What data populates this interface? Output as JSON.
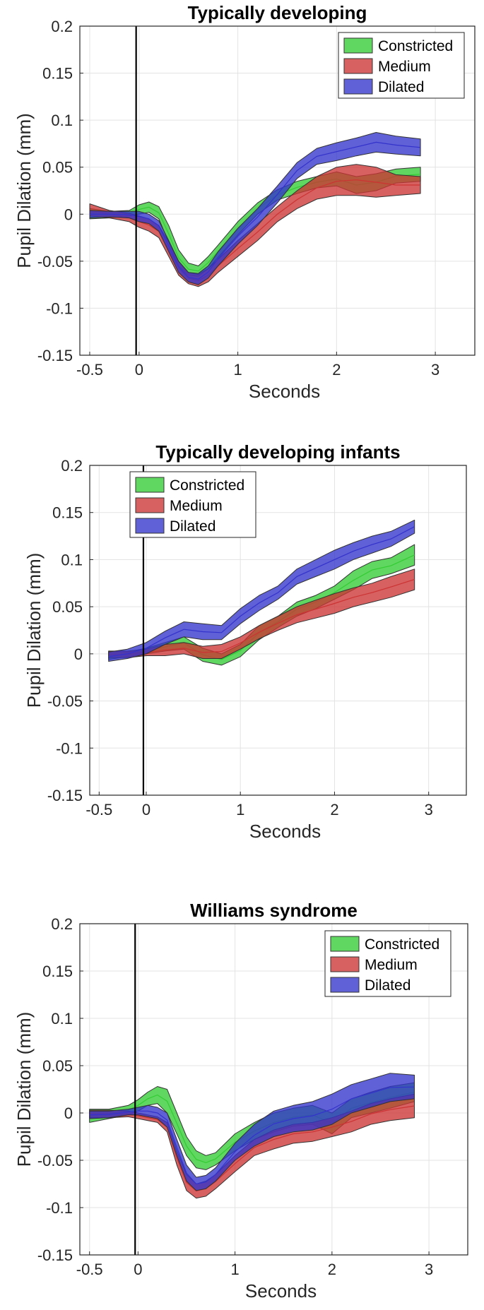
{
  "chart_data": [
    {
      "type": "area",
      "title": "Typically developing",
      "xlabel": "Seconds",
      "ylabel": "Pupil Dilation (mm)",
      "xlim": [
        -0.6,
        3.4
      ],
      "ylim": [
        -0.15,
        0.2
      ],
      "xticks": [
        -0.5,
        0,
        1,
        2,
        3
      ],
      "xtick_labels": [
        "-0.5",
        "0",
        "1",
        "2",
        "3"
      ],
      "yticks": [
        0.2,
        0.15,
        0.1,
        0.05,
        0,
        -0.05,
        -0.1,
        -0.15
      ],
      "ytick_labels": [
        "0.2",
        "0.15",
        "0.1",
        "0.05",
        "0",
        "-0.05",
        "-0.1",
        "-0.15"
      ],
      "grid": true,
      "vline_x": -0.03,
      "legend_position": "top-right",
      "series": [
        {
          "name": "Constricted",
          "color": "#33cc33",
          "x": [
            -0.5,
            -0.3,
            -0.1,
            0.0,
            0.1,
            0.2,
            0.3,
            0.4,
            0.5,
            0.6,
            0.7,
            0.8,
            1.0,
            1.2,
            1.4,
            1.6,
            1.8,
            2.0,
            2.2,
            2.4,
            2.6,
            2.85
          ],
          "lower": [
            -0.005,
            -0.004,
            -0.002,
            0.0,
            0.002,
            -0.005,
            -0.03,
            -0.055,
            -0.065,
            -0.066,
            -0.058,
            -0.046,
            -0.022,
            0.0,
            0.015,
            0.022,
            0.028,
            0.03,
            0.022,
            0.025,
            0.033,
            0.035
          ],
          "upper": [
            0.006,
            0.003,
            0.004,
            0.01,
            0.013,
            0.008,
            -0.012,
            -0.038,
            -0.052,
            -0.055,
            -0.045,
            -0.033,
            -0.008,
            0.012,
            0.026,
            0.035,
            0.04,
            0.045,
            0.04,
            0.043,
            0.048,
            0.05
          ]
        },
        {
          "name": "Medium",
          "color": "#cc3333",
          "x": [
            -0.5,
            -0.3,
            -0.1,
            0.0,
            0.1,
            0.2,
            0.3,
            0.4,
            0.5,
            0.6,
            0.7,
            0.8,
            1.0,
            1.2,
            1.4,
            1.6,
            1.8,
            2.0,
            2.2,
            2.4,
            2.6,
            2.85
          ],
          "lower": [
            -0.002,
            -0.004,
            -0.008,
            -0.014,
            -0.018,
            -0.025,
            -0.045,
            -0.065,
            -0.074,
            -0.077,
            -0.072,
            -0.062,
            -0.045,
            -0.028,
            -0.008,
            0.006,
            0.016,
            0.02,
            0.02,
            0.018,
            0.02,
            0.022
          ],
          "upper": [
            0.011,
            0.004,
            0.001,
            -0.002,
            -0.005,
            -0.012,
            -0.03,
            -0.05,
            -0.062,
            -0.064,
            -0.058,
            -0.048,
            -0.028,
            -0.01,
            0.008,
            0.025,
            0.04,
            0.05,
            0.053,
            0.05,
            0.042,
            0.04
          ]
        },
        {
          "name": "Dilated",
          "color": "#3333cc",
          "x": [
            -0.5,
            -0.3,
            -0.1,
            0.0,
            0.1,
            0.2,
            0.3,
            0.4,
            0.5,
            0.6,
            0.7,
            0.8,
            1.0,
            1.2,
            1.4,
            1.6,
            1.8,
            2.0,
            2.2,
            2.4,
            2.6,
            2.85
          ],
          "lower": [
            -0.004,
            -0.003,
            -0.004,
            -0.008,
            -0.01,
            -0.018,
            -0.04,
            -0.062,
            -0.072,
            -0.075,
            -0.068,
            -0.055,
            -0.032,
            -0.012,
            0.012,
            0.038,
            0.053,
            0.057,
            0.062,
            0.066,
            0.064,
            0.062
          ],
          "upper": [
            0.004,
            0.003,
            0.003,
            0.003,
            0.0,
            -0.007,
            -0.028,
            -0.05,
            -0.062,
            -0.063,
            -0.055,
            -0.04,
            -0.015,
            0.006,
            0.03,
            0.055,
            0.07,
            0.076,
            0.081,
            0.087,
            0.083,
            0.08
          ]
        }
      ]
    },
    {
      "type": "area",
      "title": "Typically developing infants",
      "xlabel": "Seconds",
      "ylabel": "Pupil Dilation (mm)",
      "xlim": [
        -0.6,
        3.4
      ],
      "ylim": [
        -0.15,
        0.2
      ],
      "xticks": [
        -0.5,
        0,
        1,
        2,
        3
      ],
      "xtick_labels": [
        "-0.5",
        "0",
        "1",
        "2",
        "3"
      ],
      "yticks": [
        0.2,
        0.15,
        0.1,
        0.05,
        0,
        -0.05,
        -0.1,
        -0.15
      ],
      "ytick_labels": [
        "0.2",
        "0.15",
        "0.1",
        "0.05",
        "0",
        "-0.05",
        "-0.1",
        "-0.15"
      ],
      "grid": true,
      "vline_x": -0.03,
      "legend_position": "top-left",
      "series": [
        {
          "name": "Constricted",
          "color": "#33cc33",
          "x": [
            -0.4,
            -0.2,
            0.0,
            0.2,
            0.4,
            0.6,
            0.8,
            1.0,
            1.2,
            1.4,
            1.6,
            1.8,
            2.0,
            2.2,
            2.4,
            2.6,
            2.85
          ],
          "lower": [
            -0.006,
            -0.003,
            0.0,
            0.003,
            0.005,
            -0.008,
            -0.012,
            -0.003,
            0.015,
            0.028,
            0.04,
            0.048,
            0.058,
            0.068,
            0.08,
            0.085,
            0.094
          ],
          "upper": [
            0.003,
            0.002,
            0.006,
            0.012,
            0.018,
            0.006,
            0.0,
            0.01,
            0.03,
            0.04,
            0.055,
            0.062,
            0.072,
            0.088,
            0.098,
            0.102,
            0.116
          ]
        },
        {
          "name": "Medium",
          "color": "#cc3333",
          "x": [
            -0.4,
            -0.2,
            0.0,
            0.2,
            0.4,
            0.6,
            0.8,
            1.0,
            1.2,
            1.4,
            1.6,
            1.8,
            2.0,
            2.2,
            2.4,
            2.6,
            2.85
          ],
          "lower": [
            -0.004,
            -0.004,
            -0.002,
            -0.002,
            0.0,
            -0.005,
            -0.005,
            0.005,
            0.016,
            0.025,
            0.033,
            0.038,
            0.043,
            0.05,
            0.055,
            0.06,
            0.068
          ],
          "upper": [
            0.003,
            0.003,
            0.005,
            0.01,
            0.012,
            0.008,
            0.01,
            0.018,
            0.03,
            0.04,
            0.05,
            0.057,
            0.064,
            0.07,
            0.075,
            0.082,
            0.09
          ]
        },
        {
          "name": "Dilated",
          "color": "#3333cc",
          "x": [
            -0.4,
            -0.2,
            0.0,
            0.2,
            0.4,
            0.6,
            0.8,
            1.0,
            1.2,
            1.4,
            1.6,
            1.8,
            2.0,
            2.2,
            2.4,
            2.6,
            2.85
          ],
          "lower": [
            -0.008,
            -0.005,
            0.0,
            0.01,
            0.018,
            0.015,
            0.015,
            0.032,
            0.046,
            0.058,
            0.074,
            0.082,
            0.09,
            0.1,
            0.107,
            0.114,
            0.128
          ],
          "upper": [
            0.002,
            0.005,
            0.012,
            0.024,
            0.034,
            0.032,
            0.03,
            0.048,
            0.062,
            0.072,
            0.09,
            0.1,
            0.11,
            0.118,
            0.125,
            0.13,
            0.142
          ]
        }
      ]
    },
    {
      "type": "area",
      "title": "Williams syndrome",
      "xlabel": "Seconds",
      "ylabel": "Pupil Dilation (mm)",
      "xlim": [
        -0.6,
        3.4
      ],
      "ylim": [
        -0.15,
        0.2
      ],
      "xticks": [
        -0.5,
        0,
        1,
        2,
        3
      ],
      "xtick_labels": [
        "-0.5",
        "0",
        "1",
        "2",
        "3"
      ],
      "yticks": [
        0.2,
        0.15,
        0.1,
        0.05,
        0,
        -0.05,
        -0.1,
        -0.15
      ],
      "ytick_labels": [
        "0.2",
        "0.15",
        "0.1",
        "0.05",
        "0",
        "-0.05",
        "-0.1",
        "-0.15"
      ],
      "grid": true,
      "vline_x": -0.03,
      "legend_position": "top-right",
      "series": [
        {
          "name": "Constricted",
          "color": "#33cc33",
          "x": [
            -0.5,
            -0.3,
            -0.1,
            0.0,
            0.1,
            0.2,
            0.3,
            0.4,
            0.5,
            0.6,
            0.7,
            0.8,
            1.0,
            1.2,
            1.4,
            1.6,
            1.8,
            2.0,
            2.2,
            2.4,
            2.6,
            2.85
          ],
          "lower": [
            -0.01,
            -0.006,
            -0.002,
            0.002,
            0.008,
            0.01,
            0.0,
            -0.022,
            -0.045,
            -0.058,
            -0.06,
            -0.055,
            -0.04,
            -0.028,
            -0.02,
            -0.014,
            -0.012,
            -0.022,
            -0.005,
            0.0,
            0.005,
            0.012
          ],
          "upper": [
            0.004,
            0.004,
            0.008,
            0.014,
            0.022,
            0.028,
            0.025,
            0.0,
            -0.025,
            -0.04,
            -0.045,
            -0.042,
            -0.022,
            -0.01,
            0.0,
            0.005,
            0.008,
            0.0,
            0.015,
            0.022,
            0.028,
            0.032
          ]
        },
        {
          "name": "Medium",
          "color": "#cc3333",
          "x": [
            -0.5,
            -0.3,
            -0.1,
            0.0,
            0.1,
            0.2,
            0.3,
            0.4,
            0.5,
            0.6,
            0.7,
            0.8,
            1.0,
            1.2,
            1.4,
            1.6,
            1.8,
            2.0,
            2.2,
            2.4,
            2.6,
            2.85
          ],
          "lower": [
            -0.005,
            -0.005,
            -0.004,
            -0.006,
            -0.008,
            -0.01,
            -0.02,
            -0.055,
            -0.082,
            -0.09,
            -0.088,
            -0.08,
            -0.062,
            -0.045,
            -0.038,
            -0.032,
            -0.03,
            -0.025,
            -0.02,
            -0.012,
            -0.008,
            -0.005
          ],
          "upper": [
            0.003,
            0.003,
            0.002,
            0.0,
            -0.002,
            -0.004,
            -0.01,
            -0.04,
            -0.065,
            -0.075,
            -0.072,
            -0.065,
            -0.045,
            -0.028,
            -0.018,
            -0.012,
            -0.01,
            -0.005,
            0.002,
            0.01,
            0.015,
            0.02
          ]
        },
        {
          "name": "Dilated",
          "color": "#3333cc",
          "x": [
            -0.5,
            -0.3,
            -0.1,
            0.0,
            0.1,
            0.2,
            0.3,
            0.4,
            0.5,
            0.6,
            0.7,
            0.8,
            1.0,
            1.2,
            1.4,
            1.6,
            1.8,
            2.0,
            2.2,
            2.4,
            2.6,
            2.85
          ],
          "lower": [
            -0.006,
            -0.005,
            -0.002,
            -0.002,
            -0.004,
            -0.006,
            -0.015,
            -0.045,
            -0.072,
            -0.082,
            -0.08,
            -0.072,
            -0.05,
            -0.035,
            -0.025,
            -0.02,
            -0.018,
            -0.012,
            0.0,
            0.006,
            0.012,
            0.015
          ],
          "upper": [
            0.002,
            0.002,
            0.004,
            0.006,
            0.008,
            0.006,
            0.0,
            -0.028,
            -0.055,
            -0.068,
            -0.066,
            -0.058,
            -0.032,
            -0.012,
            0.002,
            0.008,
            0.012,
            0.02,
            0.03,
            0.036,
            0.042,
            0.04
          ]
        }
      ]
    }
  ]
}
